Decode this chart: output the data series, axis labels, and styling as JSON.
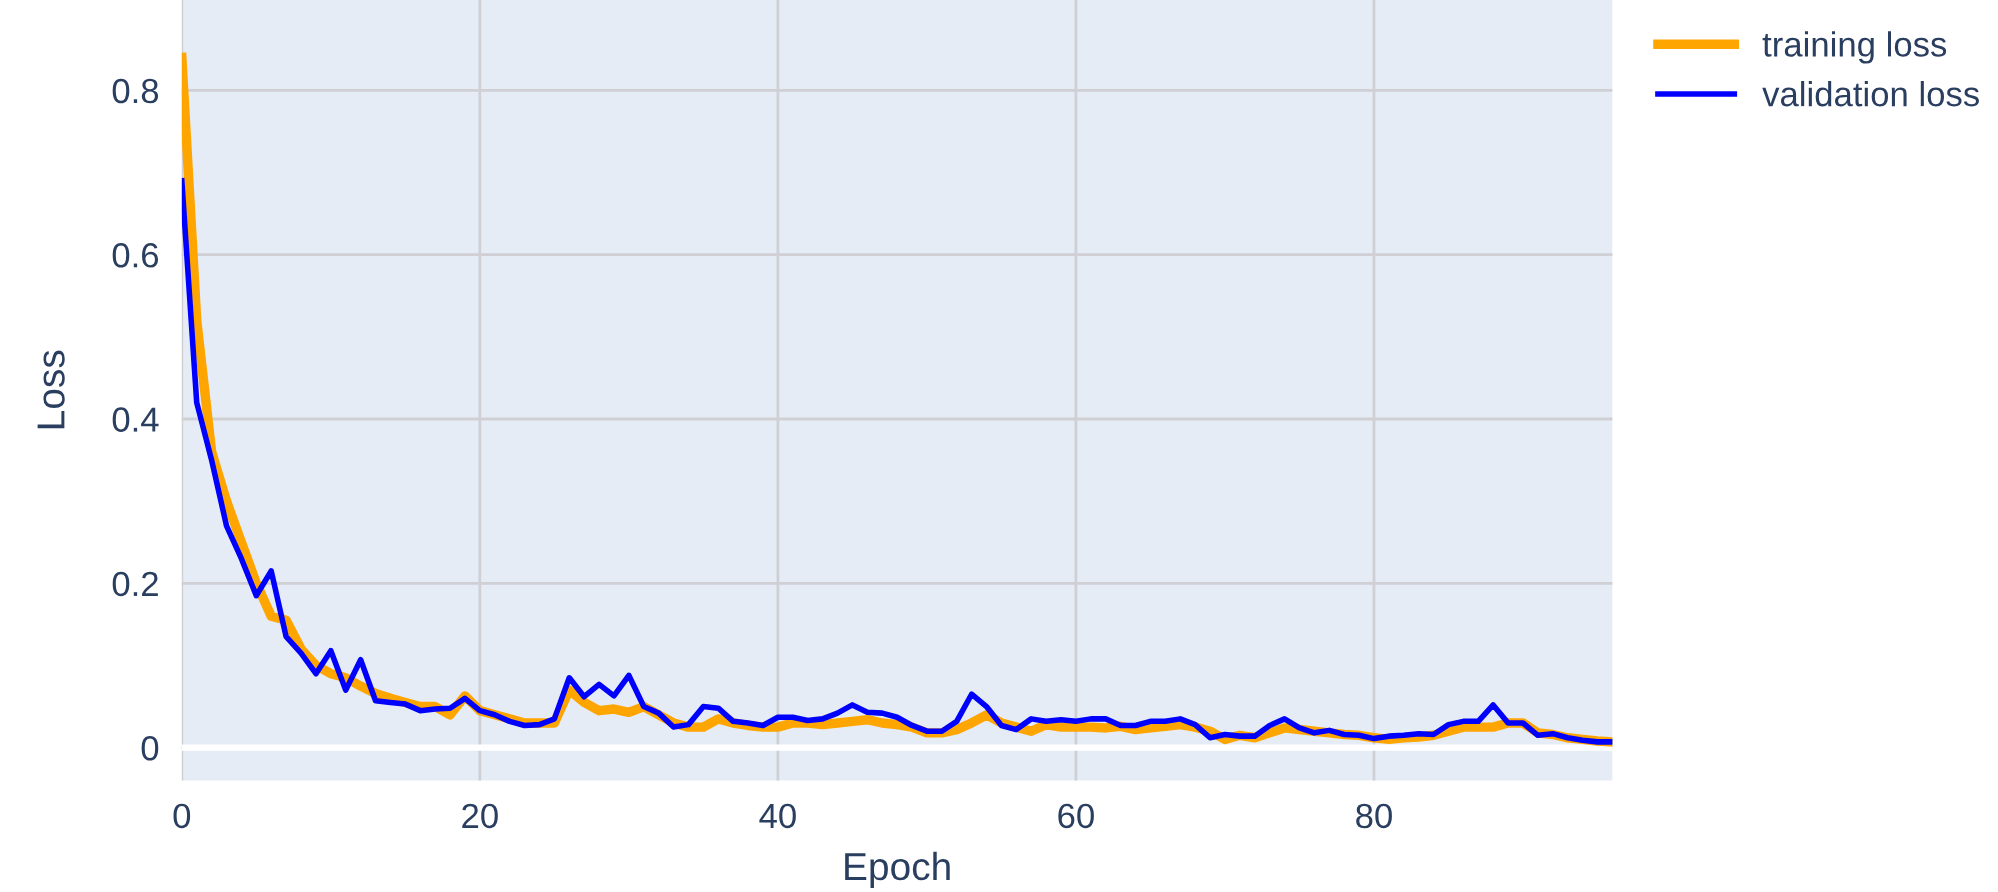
{
  "chart_data": {
    "type": "line",
    "xlabel": "Epoch",
    "ylabel": "Loss",
    "x": [
      0,
      1,
      2,
      3,
      4,
      5,
      6,
      7,
      8,
      9,
      10,
      11,
      12,
      13,
      14,
      15,
      16,
      17,
      18,
      19,
      20,
      21,
      22,
      23,
      24,
      25,
      26,
      27,
      28,
      29,
      30,
      31,
      32,
      33,
      34,
      35,
      36,
      37,
      38,
      39,
      40,
      41,
      42,
      43,
      44,
      45,
      46,
      47,
      48,
      49,
      50,
      51,
      52,
      53,
      54,
      55,
      56,
      57,
      58,
      59,
      60,
      61,
      62,
      63,
      64,
      65,
      66,
      67,
      68,
      69,
      70,
      71,
      72,
      73,
      74,
      75,
      76,
      77,
      78,
      79,
      80,
      81,
      82,
      83,
      84,
      85,
      86,
      87,
      88,
      89,
      90,
      91,
      92,
      93,
      94,
      95,
      96
    ],
    "series": [
      {
        "name": "training loss",
        "color": "#ffa500",
        "values": [
          0.84,
          0.52,
          0.36,
          0.3,
          0.25,
          0.2,
          0.16,
          0.155,
          0.12,
          0.1,
          0.09,
          0.085,
          0.075,
          0.066,
          0.06,
          0.055,
          0.05,
          0.05,
          0.04,
          0.063,
          0.045,
          0.04,
          0.035,
          0.03,
          0.03,
          0.03,
          0.07,
          0.055,
          0.045,
          0.047,
          0.043,
          0.05,
          0.04,
          0.03,
          0.025,
          0.025,
          0.035,
          0.03,
          0.027,
          0.025,
          0.025,
          0.03,
          0.03,
          0.028,
          0.03,
          0.032,
          0.034,
          0.03,
          0.028,
          0.025,
          0.018,
          0.018,
          0.022,
          0.03,
          0.04,
          0.03,
          0.025,
          0.02,
          0.028,
          0.025,
          0.025,
          0.025,
          0.024,
          0.026,
          0.022,
          0.024,
          0.026,
          0.028,
          0.025,
          0.02,
          0.01,
          0.015,
          0.012,
          0.018,
          0.024,
          0.022,
          0.02,
          0.018,
          0.016,
          0.015,
          0.012,
          0.01,
          0.012,
          0.013,
          0.015,
          0.02,
          0.025,
          0.025,
          0.025,
          0.03,
          0.03,
          0.018,
          0.016,
          0.012,
          0.01,
          0.008,
          0.007
        ]
      },
      {
        "name": "validation loss",
        "color": "#0000ff",
        "values": [
          0.69,
          0.42,
          0.35,
          0.27,
          0.23,
          0.185,
          0.215,
          0.135,
          0.115,
          0.09,
          0.118,
          0.07,
          0.107,
          0.057,
          0.055,
          0.053,
          0.045,
          0.047,
          0.048,
          0.06,
          0.045,
          0.04,
          0.032,
          0.027,
          0.028,
          0.035,
          0.085,
          0.062,
          0.077,
          0.063,
          0.088,
          0.05,
          0.042,
          0.025,
          0.028,
          0.05,
          0.048,
          0.032,
          0.03,
          0.027,
          0.037,
          0.037,
          0.033,
          0.035,
          0.042,
          0.052,
          0.043,
          0.042,
          0.037,
          0.027,
          0.02,
          0.02,
          0.032,
          0.065,
          0.05,
          0.027,
          0.022,
          0.035,
          0.032,
          0.034,
          0.032,
          0.035,
          0.035,
          0.027,
          0.027,
          0.032,
          0.032,
          0.035,
          0.028,
          0.012,
          0.016,
          0.014,
          0.014,
          0.027,
          0.035,
          0.024,
          0.018,
          0.021,
          0.016,
          0.015,
          0.011,
          0.014,
          0.015,
          0.017,
          0.016,
          0.028,
          0.032,
          0.032,
          0.052,
          0.03,
          0.03,
          0.015,
          0.017,
          0.012,
          0.009,
          0.007,
          0.007
        ]
      }
    ],
    "xlim": [
      0,
      96
    ],
    "xticks": [
      0,
      20,
      40,
      60,
      80
    ],
    "ylim": [
      -0.04,
      0.91
    ],
    "yticks": [
      0,
      0.2,
      0.4,
      0.6,
      0.8
    ],
    "grid": true,
    "legend": "top right",
    "marker": "none",
    "line_style": "solid"
  }
}
